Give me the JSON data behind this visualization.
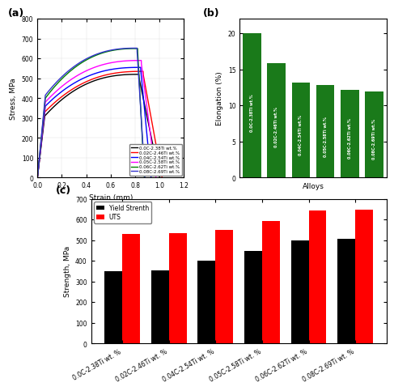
{
  "panel_a": {
    "curves": [
      {
        "label": "0.0C-2.38Ti wt.%",
        "color": "black",
        "strain_end": 1.0,
        "uts": 520,
        "yield_stress": 310,
        "strain_yield": 0.06,
        "strain_uts": 0.83
      },
      {
        "label": "0.02C-2.46Ti wt.%",
        "color": "red",
        "strain_end": 1.02,
        "uts": 535,
        "yield_stress": 330,
        "strain_yield": 0.06,
        "strain_uts": 0.865
      },
      {
        "label": "0.04C-2.54Ti wt.%",
        "color": "blue",
        "strain_end": 0.93,
        "uts": 555,
        "yield_stress": 360,
        "strain_yield": 0.065,
        "strain_uts": 0.845
      },
      {
        "label": "0.05C-2.58Ti wt.%",
        "color": "magenta",
        "strain_end": 0.97,
        "uts": 590,
        "yield_stress": 380,
        "strain_yield": 0.065,
        "strain_uts": 0.85
      },
      {
        "label": "0.06C-2.62Ti wt.%",
        "color": "green",
        "strain_end": 0.875,
        "uts": 650,
        "yield_stress": 400,
        "strain_yield": 0.065,
        "strain_uts": 0.82
      },
      {
        "label": "0.08C-2.69Ti wt.%",
        "color": "#3333cc",
        "strain_end": 0.88,
        "uts": 652,
        "yield_stress": 415,
        "strain_yield": 0.065,
        "strain_uts": 0.815
      }
    ],
    "xlabel": "Strain (mm)",
    "ylabel": "Stress, MPa",
    "xlim": [
      0.0,
      1.2
    ],
    "ylim": [
      0,
      800
    ],
    "xticks": [
      0.0,
      0.2,
      0.4,
      0.6,
      0.8,
      1.0,
      1.2
    ],
    "yticks": [
      0,
      100,
      200,
      300,
      400,
      500,
      600,
      700,
      800
    ]
  },
  "panel_b": {
    "categories": [
      "0.0C-2.38Ti wt.%",
      "0.02C-2.46Ti wt.%",
      "0.04C-2.54Ti wt.%",
      "0.05C-2.58Ti wt.%",
      "0.06C-2.62Ti wt.%",
      "0.08C-2.69Ti wt.%"
    ],
    "values": [
      20.0,
      15.8,
      13.2,
      12.8,
      12.2,
      11.9
    ],
    "bar_color": "#1a7a1a",
    "xlabel": "Alloys",
    "ylabel": "Elongation (%)",
    "ylim": [
      0,
      22
    ],
    "yticks": [
      0,
      5,
      10,
      15,
      20
    ]
  },
  "panel_c": {
    "categories": [
      "0.0C-2.38Ti wt. %",
      "0.02C-2.46Ti wt. %",
      "0.04C-2.54Ti wt. %",
      "0.05C-2.58Ti wt. %",
      "0.06C-2.62Ti wt. %",
      "0.08C-2.69Ti wt. %"
    ],
    "yield_values": [
      348,
      352,
      400,
      448,
      498,
      508
    ],
    "uts_values": [
      528,
      535,
      548,
      593,
      645,
      648
    ],
    "yield_color": "black",
    "uts_color": "red",
    "ylabel": "Strength, MPa",
    "ylim": [
      0,
      700
    ],
    "yticks": [
      0,
      100,
      200,
      300,
      400,
      500,
      600,
      700
    ],
    "legend_labels": [
      "Yield Strenth",
      "UTS"
    ]
  },
  "background_color": "#ffffff"
}
